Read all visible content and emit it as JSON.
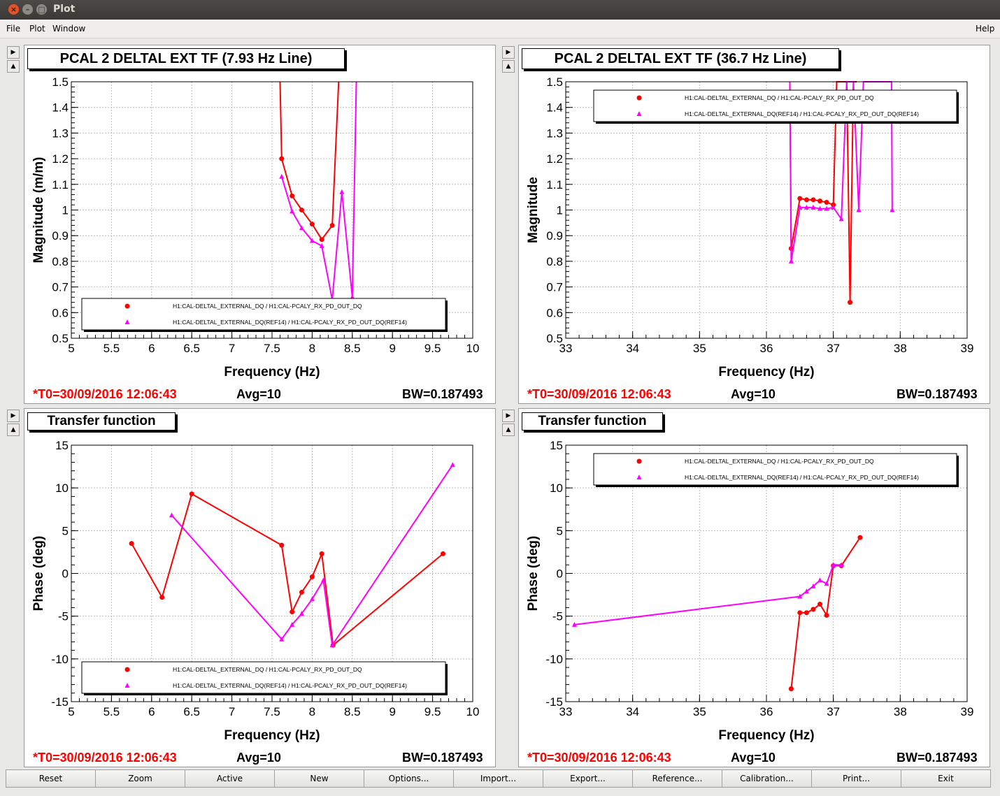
{
  "window": {
    "title": "Plot"
  },
  "menu": {
    "file": "File",
    "plot": "Plot",
    "window": "Window",
    "help": "Help"
  },
  "buttons": [
    "Reset",
    "Zoom",
    "Active",
    "New",
    "Options...",
    "Import...",
    "Export...",
    "Reference...",
    "Calibration...",
    "Print...",
    "Exit"
  ],
  "colors": {
    "ref": "#ff0000",
    "live": "#ff00ff"
  },
  "panels": [
    {
      "title": "PCAL 2 DELTAL EXT TF (7.93 Hz Line)",
      "t0": "*T0=30/09/2016 12:06:43",
      "avg": "Avg=10",
      "bw": "BW=0.187493"
    },
    {
      "title": "PCAL 2 DELTAL EXT TF (36.7 Hz Line)",
      "t0": "*T0=30/09/2016 12:06:43",
      "avg": "Avg=10",
      "bw": "BW=0.187493"
    },
    {
      "title": "Transfer function",
      "t0": "*T0=30/09/2016 12:06:43",
      "avg": "Avg=10",
      "bw": "BW=0.187493"
    },
    {
      "title": "Transfer function",
      "t0": "*T0=30/09/2016 12:06:43",
      "avg": "Avg=10",
      "bw": "BW=0.187493"
    }
  ],
  "chart_data": [
    {
      "type": "line",
      "xlabel": "Frequency (Hz)",
      "ylabel": "Magnitude (m/m)",
      "xlim": [
        5,
        10
      ],
      "ylim": [
        0.5,
        1.5
      ],
      "xticks": [
        "5",
        "5.5",
        "6",
        "6.5",
        "7",
        "7.5",
        "8",
        "8.5",
        "9",
        "9.5",
        "10"
      ],
      "yticks": [
        "0.5",
        "0.6",
        "0.7",
        "0.8",
        "0.9",
        "1",
        "1.1",
        "1.2",
        "1.3",
        "1.4",
        "1.5"
      ],
      "grid": true,
      "legend_position": "bottom",
      "series": [
        {
          "name": "H1:CAL-DELTAL_EXTERNAL_DQ / H1:CAL-PCALY_RX_PD_OUT_DQ",
          "marker": "circle",
          "x": [
            7.6,
            7.62,
            7.75,
            7.87,
            8.0,
            8.12,
            8.25,
            8.33
          ],
          "y": [
            1.5,
            1.2,
            1.055,
            1.0,
            0.945,
            0.885,
            0.94,
            1.5
          ]
        },
        {
          "name": "H1:CAL-DELTAL_EXTERNAL_DQ(REF14) / H1:CAL-PCALY_RX_PD_OUT_DQ(REF14)",
          "marker": "triangle",
          "x": [
            7.62,
            7.75,
            7.87,
            8.0,
            8.12,
            8.25,
            8.37,
            8.5,
            8.55
          ],
          "y": [
            1.13,
            0.995,
            0.93,
            0.88,
            0.86,
            0.65,
            1.07,
            0.66,
            1.5
          ]
        }
      ]
    },
    {
      "type": "line",
      "xlabel": "Frequency (Hz)",
      "ylabel": "Magnitude",
      "xlim": [
        33,
        39
      ],
      "ylim": [
        0.5,
        1.5
      ],
      "xticks": [
        "33",
        "34",
        "35",
        "36",
        "37",
        "38",
        "39"
      ],
      "yticks": [
        "0.5",
        "0.6",
        "0.7",
        "0.8",
        "0.9",
        "1",
        "1.1",
        "1.2",
        "1.3",
        "1.4",
        "1.5"
      ],
      "grid": true,
      "legend_position": "top-right",
      "series": [
        {
          "name": "H1:CAL-DELTAL_EXTERNAL_DQ / H1:CAL-PCALY_RX_PD_OUT_DQ",
          "marker": "circle",
          "x": [
            36.35,
            36.37,
            36.5,
            36.6,
            36.7,
            36.8,
            36.9,
            37.0,
            37.05,
            37.1,
            37.2,
            37.25,
            37.3,
            37.35
          ],
          "y": [
            1.5,
            0.85,
            1.045,
            1.04,
            1.04,
            1.035,
            1.03,
            1.02,
            1.5,
            1.5,
            1.5,
            0.64,
            1.5,
            1.5
          ]
        },
        {
          "name": "H1:CAL-DELTAL_EXTERNAL_DQ(REF14) / H1:CAL-PCALY_RX_PD_OUT_DQ(REF14)",
          "marker": "triangle",
          "x": [
            36.35,
            36.37,
            36.5,
            36.6,
            36.7,
            36.8,
            36.9,
            37.0,
            37.12,
            37.2,
            37.3,
            37.38,
            37.45,
            37.87,
            37.88
          ],
          "y": [
            1.5,
            0.8,
            1.01,
            1.01,
            1.01,
            1.005,
            1.005,
            1.01,
            0.965,
            1.5,
            1.5,
            1.0,
            1.5,
            1.5,
            1.0
          ]
        }
      ]
    },
    {
      "type": "line",
      "xlabel": "Frequency (Hz)",
      "ylabel": "Phase (deg)",
      "xlim": [
        5,
        10
      ],
      "ylim": [
        -15,
        15
      ],
      "xticks": [
        "5",
        "5.5",
        "6",
        "6.5",
        "7",
        "7.5",
        "8",
        "8.5",
        "9",
        "9.5",
        "10"
      ],
      "yticks": [
        "-15",
        "-10",
        "-5",
        "0",
        "5",
        "10",
        "15"
      ],
      "grid": true,
      "legend_position": "bottom",
      "series": [
        {
          "name": "H1:CAL-DELTAL_EXTERNAL_DQ / H1:CAL-PCALY_RX_PD_OUT_DQ",
          "marker": "circle",
          "x": [
            5.75,
            6.13,
            6.5,
            7.62,
            7.75,
            7.87,
            8.0,
            8.12,
            8.26,
            9.63
          ],
          "y": [
            3.5,
            -2.8,
            9.3,
            3.3,
            -4.5,
            -2.2,
            -0.4,
            2.3,
            -8.4,
            2.3
          ]
        },
        {
          "name": "H1:CAL-DELTAL_EXTERNAL_DQ(REF14) / H1:CAL-PCALY_RX_PD_OUT_DQ(REF14)",
          "marker": "triangle",
          "x": [
            6.25,
            7.62,
            7.75,
            7.87,
            8.0,
            8.14,
            8.25,
            9.75
          ],
          "y": [
            6.8,
            -7.7,
            -6.0,
            -4.7,
            -3.0,
            -0.8,
            -8.4,
            12.7
          ]
        }
      ]
    },
    {
      "type": "line",
      "xlabel": "Frequency (Hz)",
      "ylabel": "Phase (deg)",
      "xlim": [
        33,
        39
      ],
      "ylim": [
        -15,
        15
      ],
      "xticks": [
        "33",
        "34",
        "35",
        "36",
        "37",
        "38",
        "39"
      ],
      "yticks": [
        "-15",
        "-10",
        "-5",
        "0",
        "5",
        "10",
        "15"
      ],
      "grid": true,
      "legend_position": "top-right",
      "series": [
        {
          "name": "H1:CAL-DELTAL_EXTERNAL_DQ / H1:CAL-PCALY_RX_PD_OUT_DQ",
          "marker": "circle",
          "x": [
            36.37,
            36.5,
            36.6,
            36.7,
            36.8,
            36.9,
            37.0,
            37.12,
            37.4
          ],
          "y": [
            -13.5,
            -4.6,
            -4.6,
            -4.2,
            -3.6,
            -4.9,
            0.9,
            0.9,
            4.2
          ]
        },
        {
          "name": "H1:CAL-DELTAL_EXTERNAL_DQ(REF14) / H1:CAL-PCALY_RX_PD_OUT_DQ(REF14)",
          "marker": "triangle",
          "x": [
            33.13,
            36.5,
            36.6,
            36.7,
            36.8,
            36.9,
            37.0,
            37.12
          ],
          "y": [
            -6.0,
            -2.7,
            -2.1,
            -1.5,
            -0.8,
            -1.2,
            1.0,
            1.0
          ]
        }
      ]
    }
  ]
}
